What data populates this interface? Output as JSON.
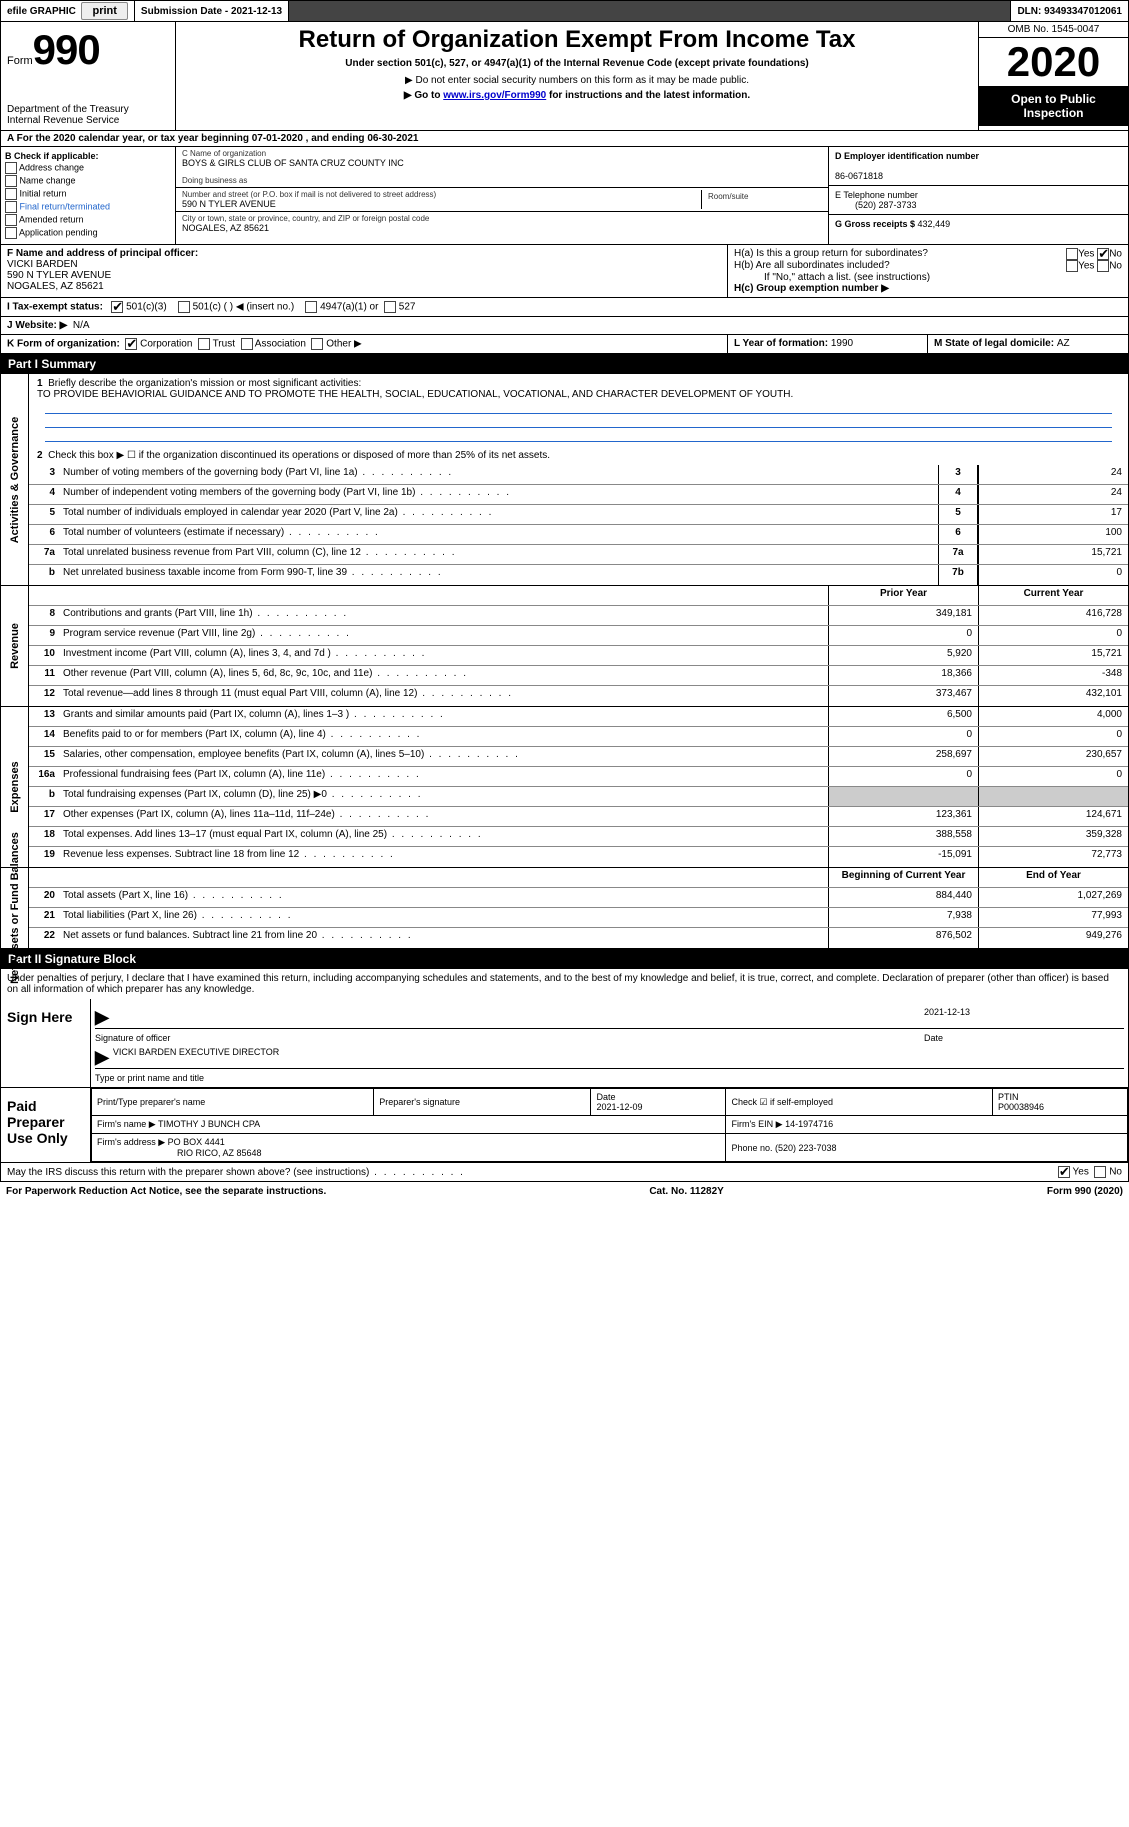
{
  "top": {
    "efile_label": "efile GRAPHIC",
    "print_btn": "print",
    "submission_label": "Submission Date - ",
    "submission_date": "2021-12-13",
    "dln_label": "DLN: ",
    "dln": "93493347012061"
  },
  "header": {
    "form_word": "Form",
    "form_number": "990",
    "dept": "Department of the Treasury",
    "irs": "Internal Revenue Service",
    "title": "Return of Organization Exempt From Income Tax",
    "subtitle": "Under section 501(c), 527, or 4947(a)(1) of the Internal Revenue Code (except private foundations)",
    "note1": "▶ Do not enter social security numbers on this form as it may be made public.",
    "note2_pre": "▶ Go to ",
    "note2_link": "www.irs.gov/Form990",
    "note2_post": " for instructions and the latest information.",
    "omb": "OMB No. 1545-0047",
    "year": "2020",
    "inspect": "Open to Public Inspection"
  },
  "period": {
    "text": "A For the 2020 calendar year, or tax year beginning 07-01-2020     , and ending 06-30-2021"
  },
  "boxB": {
    "title": "B Check if applicable:",
    "addr": "Address change",
    "name": "Name change",
    "initial": "Initial return",
    "final": "Final return/terminated",
    "amended": "Amended return",
    "app": "Application pending"
  },
  "boxC": {
    "label": "C Name of organization",
    "org": "BOYS & GIRLS CLUB OF SANTA CRUZ COUNTY INC",
    "dba_label": "Doing business as",
    "street_label": "Number and street (or P.O. box if mail is not delivered to street address)",
    "room_label": "Room/suite",
    "street": "590 N TYLER AVENUE",
    "city_label": "City or town, state or province, country, and ZIP or foreign postal code",
    "city": "NOGALES, AZ  85621"
  },
  "boxD": {
    "label": "D Employer identification number",
    "ein": "86-0671818"
  },
  "boxE": {
    "label": "E Telephone number",
    "phone": "(520) 287-3733"
  },
  "boxG": {
    "label": "G Gross receipts $ ",
    "amount": "432,449"
  },
  "boxF": {
    "label": "F Name and address of principal officer:",
    "name": "VICKI BARDEN",
    "street": "590 N TYLER AVENUE",
    "city": "NOGALES, AZ  85621"
  },
  "boxH": {
    "ha_label": "H(a)  Is this a group return for subordinates?",
    "hb_label": "H(b)  Are all subordinates included?",
    "hb_note": "If \"No,\" attach a list. (see instructions)",
    "hc_label": "H(c)  Group exemption number ▶",
    "yes": "Yes",
    "no": "No"
  },
  "boxI": {
    "label": "I     Tax-exempt status:",
    "o1": "501(c)(3)",
    "o2": "501(c) (  ) ◀ (insert no.)",
    "o3": "4947(a)(1) or",
    "o4": "527"
  },
  "boxJ": {
    "label": "J    Website: ▶",
    "value": "N/A"
  },
  "boxK": {
    "label": "K Form of organization:",
    "corp": "Corporation",
    "trust": "Trust",
    "assoc": "Association",
    "other": "Other ▶"
  },
  "boxL": {
    "label": "L Year of formation: ",
    "year": "1990"
  },
  "boxM": {
    "label": "M State of legal domicile: ",
    "state": "AZ"
  },
  "part1": {
    "title": "Part I      Summary",
    "line1_label": "Briefly describe the organization's mission or most significant activities:",
    "line1_text": "TO PROVIDE BEHAVIORIAL GUIDANCE AND TO PROMOTE THE HEALTH, SOCIAL, EDUCATIONAL, VOCATIONAL, AND CHARACTER DEVELOPMENT OF YOUTH.",
    "line2": "Check this box ▶ ☐  if the organization discontinued its operations or disposed of more than 25% of its net assets.",
    "gov_tab": "Activities & Governance",
    "rev_tab": "Revenue",
    "exp_tab": "Expenses",
    "net_tab": "Net Assets or Fund Balances",
    "prior_header": "Prior Year",
    "current_header": "Current Year",
    "boy_header": "Beginning of Current Year",
    "eoy_header": "End of Year",
    "lines_gov": [
      {
        "n": "3",
        "d": "Number of voting members of the governing body (Part VI, line 1a)",
        "box": "3",
        "v": "24"
      },
      {
        "n": "4",
        "d": "Number of independent voting members of the governing body (Part VI, line 1b)",
        "box": "4",
        "v": "24"
      },
      {
        "n": "5",
        "d": "Total number of individuals employed in calendar year 2020 (Part V, line 2a)",
        "box": "5",
        "v": "17"
      },
      {
        "n": "6",
        "d": "Total number of volunteers (estimate if necessary)",
        "box": "6",
        "v": "100"
      },
      {
        "n": "7a",
        "d": "Total unrelated business revenue from Part VIII, column (C), line 12",
        "box": "7a",
        "v": "15,721"
      },
      {
        "n": "b",
        "d": "Net unrelated business taxable income from Form 990-T, line 39",
        "box": "7b",
        "v": "0"
      }
    ],
    "lines_rev": [
      {
        "n": "8",
        "d": "Contributions and grants (Part VIII, line 1h)",
        "p": "349,181",
        "c": "416,728"
      },
      {
        "n": "9",
        "d": "Program service revenue (Part VIII, line 2g)",
        "p": "0",
        "c": "0"
      },
      {
        "n": "10",
        "d": "Investment income (Part VIII, column (A), lines 3, 4, and 7d )",
        "p": "5,920",
        "c": "15,721"
      },
      {
        "n": "11",
        "d": "Other revenue (Part VIII, column (A), lines 5, 6d, 8c, 9c, 10c, and 11e)",
        "p": "18,366",
        "c": "-348"
      },
      {
        "n": "12",
        "d": "Total revenue—add lines 8 through 11 (must equal Part VIII, column (A), line 12)",
        "p": "373,467",
        "c": "432,101"
      }
    ],
    "lines_exp": [
      {
        "n": "13",
        "d": "Grants and similar amounts paid (Part IX, column (A), lines 1–3 )",
        "p": "6,500",
        "c": "4,000"
      },
      {
        "n": "14",
        "d": "Benefits paid to or for members (Part IX, column (A), line 4)",
        "p": "0",
        "c": "0"
      },
      {
        "n": "15",
        "d": "Salaries, other compensation, employee benefits (Part IX, column (A), lines 5–10)",
        "p": "258,697",
        "c": "230,657"
      },
      {
        "n": "16a",
        "d": "Professional fundraising fees (Part IX, column (A), line 11e)",
        "p": "0",
        "c": "0"
      },
      {
        "n": "b",
        "d": "Total fundraising expenses (Part IX, column (D), line 25) ▶0",
        "p": "",
        "c": "",
        "grey": true
      },
      {
        "n": "17",
        "d": "Other expenses (Part IX, column (A), lines 11a–11d, 11f–24e)",
        "p": "123,361",
        "c": "124,671"
      },
      {
        "n": "18",
        "d": "Total expenses. Add lines 13–17 (must equal Part IX, column (A), line 25)",
        "p": "388,558",
        "c": "359,328"
      },
      {
        "n": "19",
        "d": "Revenue less expenses. Subtract line 18 from line 12",
        "p": "-15,091",
        "c": "72,773"
      }
    ],
    "lines_net": [
      {
        "n": "20",
        "d": "Total assets (Part X, line 16)",
        "p": "884,440",
        "c": "1,027,269"
      },
      {
        "n": "21",
        "d": "Total liabilities (Part X, line 26)",
        "p": "7,938",
        "c": "77,993"
      },
      {
        "n": "22",
        "d": "Net assets or fund balances. Subtract line 21 from line 20",
        "p": "876,502",
        "c": "949,276"
      }
    ]
  },
  "part2": {
    "title": "Part II      Signature Block",
    "declaration": "Under penalties of perjury, I declare that I have examined this return, including accompanying schedules and statements, and to the best of my knowledge and belief, it is true, correct, and complete. Declaration of preparer (other than officer) is based on all information of which preparer has any knowledge.",
    "sign_here": "Sign Here",
    "sig_officer": "Signature of officer",
    "sig_date": "2021-12-13",
    "date_label": "Date",
    "officer_name": "VICKI BARDEN  EXECUTIVE DIRECTOR",
    "officer_name_label": "Type or print name and title",
    "paid_prep": "Paid Preparer Use Only",
    "pt_name_label": "Print/Type preparer's name",
    "pt_sig_label": "Preparer's signature",
    "pt_date_label": "Date",
    "pt_date": "2021-12-09",
    "pt_self": "Check ☑ if self-employed",
    "ptin_label": "PTIN",
    "ptin": "P00038946",
    "firm_name_label": "Firm's name      ▶",
    "firm_name": "TIMOTHY J BUNCH CPA",
    "firm_ein_label": "Firm's EIN ▶",
    "firm_ein": "14-1974716",
    "firm_addr_label": "Firm's address ▶",
    "firm_addr1": "PO BOX 4441",
    "firm_addr2": "RIO RICO, AZ  85648",
    "firm_phone_label": "Phone no. ",
    "firm_phone": "(520) 223-7038",
    "discuss": "May the IRS discuss this return with the preparer shown above? (see instructions)",
    "yes": "Yes",
    "no": "No"
  },
  "footer": {
    "pra": "For Paperwork Reduction Act Notice, see the separate instructions.",
    "cat": "Cat. No. 11282Y",
    "form": "Form 990 (2020)"
  },
  "colors": {
    "link": "#0000cc",
    "header_bg": "#000000",
    "grey_cell": "#cccccc",
    "underline": "#2266cc"
  }
}
